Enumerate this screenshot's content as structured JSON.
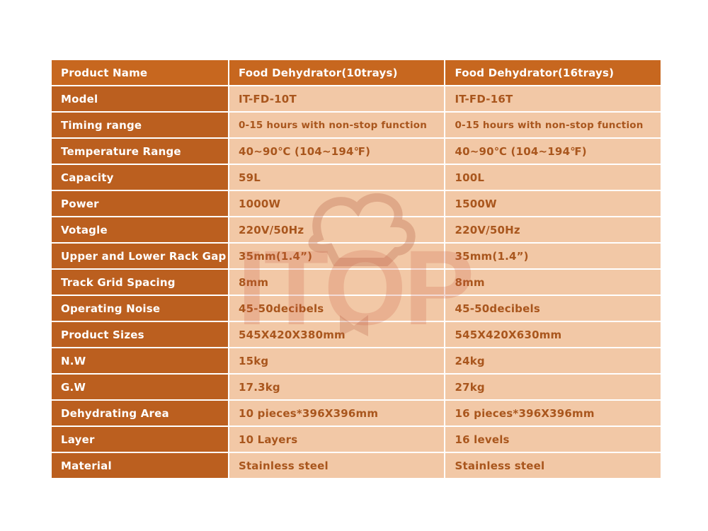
{
  "watermark": {
    "text": "ITOP",
    "icon": "chef-hat-icon"
  },
  "colors": {
    "header": "#c7671f",
    "label": "#bb5f1f",
    "cell": "#f2c8a6",
    "cell_text": "#a9561d"
  },
  "rows": [
    {
      "label": "Product Name",
      "a": "Food Dehydrator(10trays)",
      "b": "Food Dehydrator(16trays)"
    },
    {
      "label": "Model",
      "a": "IT-FD-10T",
      "b": "IT-FD-16T"
    },
    {
      "label": "Timing range",
      "a": "0-15 hours with non-stop function",
      "b": "0-15 hours with non-stop function"
    },
    {
      "label": "Temperature Range",
      "a": "40~90℃ (104~194℉)",
      "b": "40~90℃ (104~194℉)"
    },
    {
      "label": "Capacity",
      "a": "59L",
      "b": "100L"
    },
    {
      "label": "Power",
      "a": "1000W",
      "b": "1500W"
    },
    {
      "label": "Votagle",
      "a": "220V/50Hz",
      "b": "220V/50Hz"
    },
    {
      "label": "Upper and Lower Rack Gap",
      "a": "35mm(1.4”)",
      "b": "35mm(1.4”)"
    },
    {
      "label": "Track Grid Spacing",
      "a": "8mm",
      "b": "8mm"
    },
    {
      "label": "Operating Noise",
      "a": "45-50decibels",
      "b": "45-50decibels"
    },
    {
      "label": "Product Sizes",
      "a": "545X420X380mm",
      "b": "545X420X630mm"
    },
    {
      "label": "N.W",
      "a": "15kg",
      "b": "24kg"
    },
    {
      "label": "G.W",
      "a": "17.3kg",
      "b": "27kg"
    },
    {
      "label": "Dehydrating Area",
      "a": "10 pieces*396X396mm",
      "b": "16 pieces*396X396mm"
    },
    {
      "label": "Layer",
      "a": "10 Layers",
      "b": "16 levels"
    },
    {
      "label": "Material",
      "a": "Stainless steel",
      "b": "Stainless steel"
    }
  ]
}
